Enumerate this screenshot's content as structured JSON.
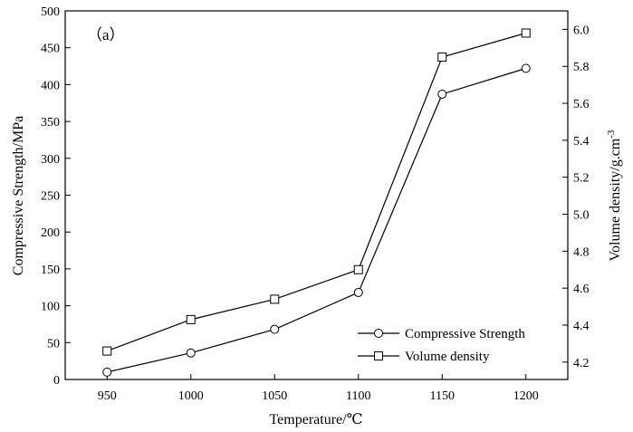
{
  "chart_data": {
    "type": "line",
    "panel_label": "（a）",
    "xlabel": "Temperature/℃",
    "ylabel_left": "Compressive Strength/MPa",
    "ylabel_right": "Volume density/g.cm-3",
    "x": [
      950,
      1000,
      1050,
      1100,
      1150,
      1200
    ],
    "xlim": [
      925,
      1225
    ],
    "ylim_left": [
      0,
      500
    ],
    "ylim_right": [
      4.106,
      6.1
    ],
    "left_ticks": [
      0,
      50,
      100,
      150,
      200,
      250,
      300,
      350,
      400,
      450,
      500
    ],
    "right_ticks": [
      "4.2",
      "4.4",
      "4.6",
      "4.8",
      "5.0",
      "5.2",
      "5.4",
      "5.6",
      "5.8",
      "6.0"
    ],
    "legend_position": "bottom-right",
    "series": [
      {
        "name": "Compressive Strength",
        "axis": "left",
        "marker": "circle",
        "values": [
          10,
          36,
          68,
          118,
          387,
          422
        ]
      },
      {
        "name": "Volume density",
        "axis": "right",
        "marker": "square",
        "values": [
          4.26,
          4.43,
          4.54,
          4.7,
          5.85,
          5.98
        ]
      }
    ]
  }
}
